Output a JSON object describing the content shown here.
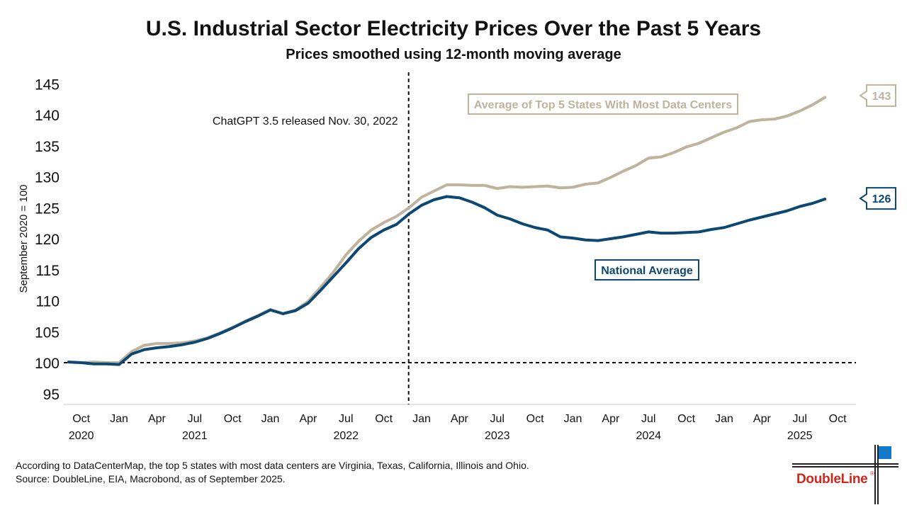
{
  "chart_data": {
    "type": "line",
    "title": "U.S. Industrial Sector Electricity Prices Over the Past 5 Years",
    "subtitle": "Prices smoothed using 12-month moving average",
    "ylabel": "September 2020 = 100",
    "ylim": [
      93,
      146
    ],
    "yticks": [
      95,
      100,
      105,
      110,
      115,
      120,
      125,
      130,
      135,
      140,
      145
    ],
    "x_start": "2020-09",
    "xlim_months": [
      0,
      62
    ],
    "month_ticks": [
      {
        "label": "Oct",
        "m": 1
      },
      {
        "label": "Jan",
        "m": 4
      },
      {
        "label": "Apr",
        "m": 7
      },
      {
        "label": "Jul",
        "m": 10
      },
      {
        "label": "Oct",
        "m": 13
      },
      {
        "label": "Jan",
        "m": 16
      },
      {
        "label": "Apr",
        "m": 19
      },
      {
        "label": "Jul",
        "m": 22
      },
      {
        "label": "Oct",
        "m": 25
      },
      {
        "label": "Jan",
        "m": 28
      },
      {
        "label": "Apr",
        "m": 31
      },
      {
        "label": "Jul",
        "m": 34
      },
      {
        "label": "Oct",
        "m": 37
      },
      {
        "label": "Jan",
        "m": 40
      },
      {
        "label": "Apr",
        "m": 43
      },
      {
        "label": "Jul",
        "m": 46
      },
      {
        "label": "Oct",
        "m": 49
      },
      {
        "label": "Jan",
        "m": 52
      },
      {
        "label": "Apr",
        "m": 55
      },
      {
        "label": "Jul",
        "m": 58
      },
      {
        "label": "Oct",
        "m": 61
      }
    ],
    "year_ticks": [
      {
        "label": "2020",
        "m": 1
      },
      {
        "label": "2021",
        "m": 10
      },
      {
        "label": "2022",
        "m": 22
      },
      {
        "label": "2023",
        "m": 34
      },
      {
        "label": "2024",
        "m": 46
      },
      {
        "label": "2025",
        "m": 58
      }
    ],
    "reference_hline": 100,
    "reference_vline_month": 26.97,
    "vline_annotation": "ChatGPT 3.5 released Nov. 30, 2022",
    "series": [
      {
        "name": "Average of Top 5 States With Most Data Centers",
        "color": "#bfb39c",
        "end_label": "143",
        "values": [
          100.1,
          100.0,
          100.1,
          100.0,
          100.0,
          101.8,
          102.8,
          103.1,
          103.1,
          103.2,
          103.5,
          104.0,
          104.8,
          105.7,
          106.7,
          107.6,
          108.6,
          107.9,
          108.5,
          109.9,
          112.2,
          114.6,
          117.4,
          119.6,
          121.4,
          122.6,
          123.6,
          125.0,
          126.7,
          127.7,
          128.7,
          128.7,
          128.6,
          128.6,
          128.1,
          128.4,
          128.3,
          128.4,
          128.5,
          128.2,
          128.3,
          128.8,
          129.0,
          129.9,
          130.9,
          131.8,
          133.0,
          133.2,
          133.9,
          134.8,
          135.4,
          136.3,
          137.2,
          137.9,
          138.9,
          139.2,
          139.3,
          139.8,
          140.6,
          141.6,
          142.8
        ]
      },
      {
        "name": "National Average",
        "color": "#0c4872",
        "end_label": "126",
        "values": [
          100.1,
          100.0,
          99.8,
          99.8,
          99.7,
          101.4,
          102.1,
          102.4,
          102.6,
          102.9,
          103.3,
          103.9,
          104.7,
          105.6,
          106.6,
          107.5,
          108.5,
          107.9,
          108.4,
          109.6,
          111.7,
          113.9,
          116.1,
          118.4,
          120.2,
          121.4,
          122.3,
          124.0,
          125.4,
          126.3,
          126.8,
          126.6,
          125.9,
          125.0,
          123.8,
          123.2,
          122.4,
          121.8,
          121.4,
          120.3,
          120.1,
          119.8,
          119.7,
          120.0,
          120.3,
          120.7,
          121.1,
          120.9,
          120.9,
          121.0,
          121.1,
          121.5,
          121.8,
          122.4,
          123.0,
          123.5,
          124.0,
          124.5,
          125.2,
          125.7,
          126.4
        ]
      }
    ]
  },
  "footnotes": {
    "line1": "According to DataCenterMap, the top 5 states with most data centers are Virginia, Texas, California, Illinois and Ohio.",
    "line2": "Source: DoubleLine, EIA, Macrobond, as of September 2025."
  },
  "logo": {
    "text": "DoubleLine",
    "reg": "®"
  }
}
